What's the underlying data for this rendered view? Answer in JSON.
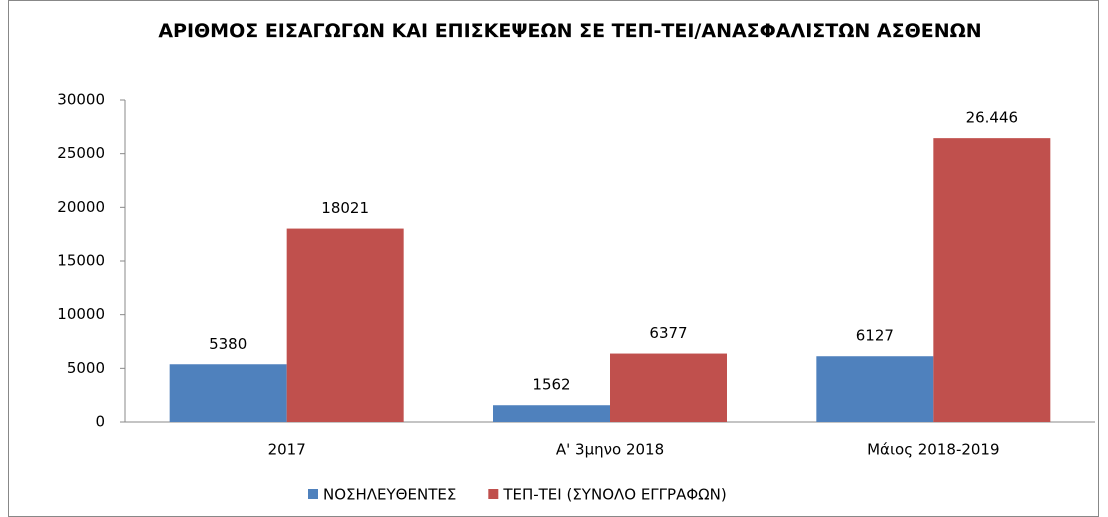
{
  "chart_data": {
    "type": "bar",
    "title": "ΑΡΙΘΜΟΣ ΕΙΣΑΓΩΓΩΝ ΚΑΙ ΕΠΙΣΚΕΨΕΩΝ ΣΕ ΤΕΠ-ΤΕΙ/ΑΝΑΣΦΑΛΙΣΤΩΝ ΑΣΘΕΝΩΝ",
    "categories": [
      "2017",
      "Α' 3μηνο 2018",
      "Μάιος 2018-2019"
    ],
    "series": [
      {
        "name": "ΝΟΣΗΛΕΥΘΕΝΤΕΣ",
        "color": "#4f81bd",
        "values": [
          5380,
          1562,
          6127
        ]
      },
      {
        "name": "ΤΕΠ-ΤΕΙ (ΣΥΝΟΛΟ ΕΓΓΡΑΦΩΝ)",
        "color": "#c0504d",
        "values": [
          18021,
          6377,
          26446
        ],
        "value_labels": [
          "18021",
          "6377",
          "26.446"
        ]
      }
    ],
    "ylim": [
      0,
      30000
    ],
    "yticks": [
      0,
      5000,
      10000,
      15000,
      20000,
      25000,
      30000
    ],
    "grid": false,
    "legend": "bottom"
  }
}
